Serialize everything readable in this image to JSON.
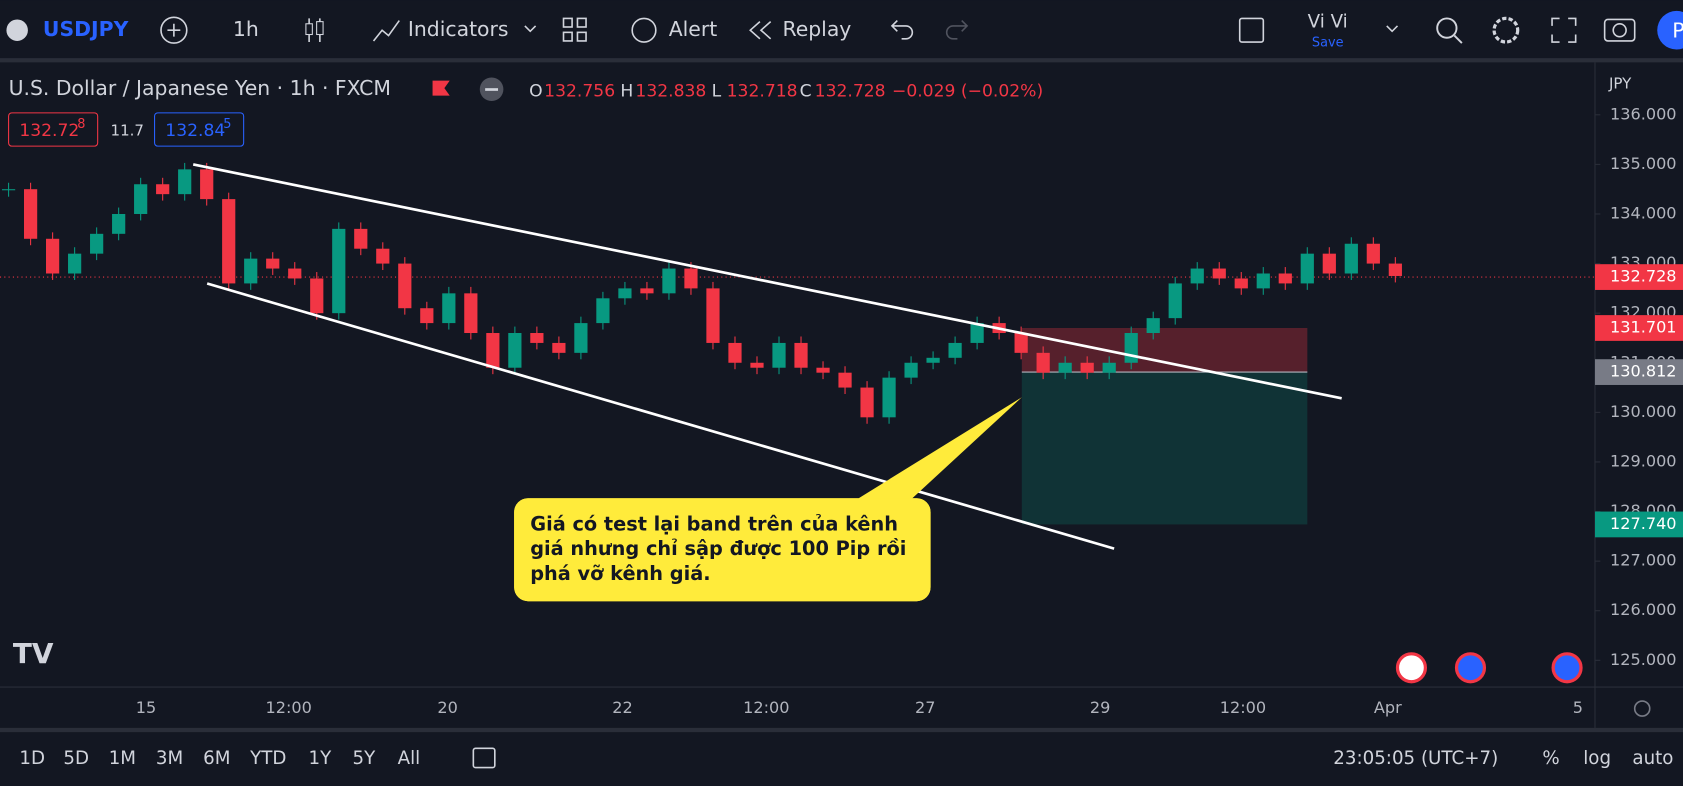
{
  "toolbar": {
    "symbol": "USDJPY",
    "interval": "1h",
    "indicators": "Indicators",
    "alert": "Alert",
    "replay": "Replay",
    "user": "Vi Vi",
    "save": "Save",
    "avatar": "P"
  },
  "legend": {
    "title": "U.S. Dollar / Japanese Yen · 1h · FXCM",
    "ohlc": [
      {
        "letter": "O",
        "value": "132.756"
      },
      {
        "letter": "H",
        "value": "132.838"
      },
      {
        "letter": "L",
        "value": "132.718"
      },
      {
        "letter": "C",
        "value": "132.728"
      }
    ],
    "change": "−0.029 (−0.02%)",
    "bid": [
      "132.72",
      "8"
    ],
    "spread": "11.7",
    "ask": [
      "132.84",
      "5"
    ]
  },
  "chart": {
    "currency": "JPY",
    "ylim": [
      124.46,
      136.97
    ],
    "yticks": [
      {
        "value": 136,
        "label": "136.000"
      },
      {
        "value": 135,
        "label": "135.000"
      },
      {
        "value": 134,
        "label": "134.000"
      },
      {
        "value": 133,
        "label": "133.000"
      },
      {
        "value": 132,
        "label": "132.000"
      },
      {
        "value": 131,
        "label": "131.000"
      },
      {
        "value": 130,
        "label": "130.000"
      },
      {
        "value": 129,
        "label": "129.000"
      },
      {
        "value": 128,
        "label": "128.000"
      },
      {
        "value": 127,
        "label": "127.000"
      },
      {
        "value": 126,
        "label": "126.000"
      },
      {
        "value": 125,
        "label": "125.000"
      }
    ],
    "xticks": [
      "15",
      "12:00",
      "20",
      "22",
      "12:00",
      "27",
      "29",
      "12:00",
      "Apr",
      "5"
    ],
    "closes": [
      134.5,
      133.5,
      132.8,
      133.2,
      133.6,
      134.0,
      134.6,
      134.4,
      134.9,
      134.3,
      132.6,
      133.1,
      132.9,
      132.7,
      132.0,
      133.7,
      133.3,
      133.0,
      132.1,
      131.8,
      132.4,
      131.6,
      130.9,
      131.6,
      131.4,
      131.2,
      131.8,
      132.3,
      132.5,
      132.4,
      132.9,
      132.5,
      131.4,
      131.0,
      130.9,
      131.4,
      130.9,
      130.8,
      130.5,
      129.9,
      130.7,
      131.0,
      131.1,
      131.4,
      131.8,
      131.6,
      131.2,
      130.8,
      131.0,
      130.8,
      131.0,
      131.6,
      131.9,
      132.6,
      132.9,
      132.7,
      132.5,
      132.8,
      132.6,
      133.2,
      132.8,
      133.4,
      133.0,
      132.75
    ],
    "last": {
      "value": 132.728,
      "label": "132.728"
    },
    "trade": {
      "stop": {
        "value": 131.701,
        "label": "131.701"
      },
      "entry": {
        "value": 130.812,
        "label": "130.812"
      },
      "target": {
        "value": 127.74,
        "label": "127.740"
      }
    },
    "annotation": [
      "Giá có test lại band trên của kênh",
      "giá nhưng chỉ sập được 100 Pip rồi",
      "phá vỡ kênh giá."
    ]
  },
  "bottom": {
    "ranges": [
      "1D",
      "5D",
      "1M",
      "3M",
      "6M",
      "YTD",
      "1Y",
      "5Y",
      "All"
    ],
    "clock": "23:05:05 (UTC+7)",
    "percent": "%",
    "log": "log",
    "auto": "auto"
  }
}
